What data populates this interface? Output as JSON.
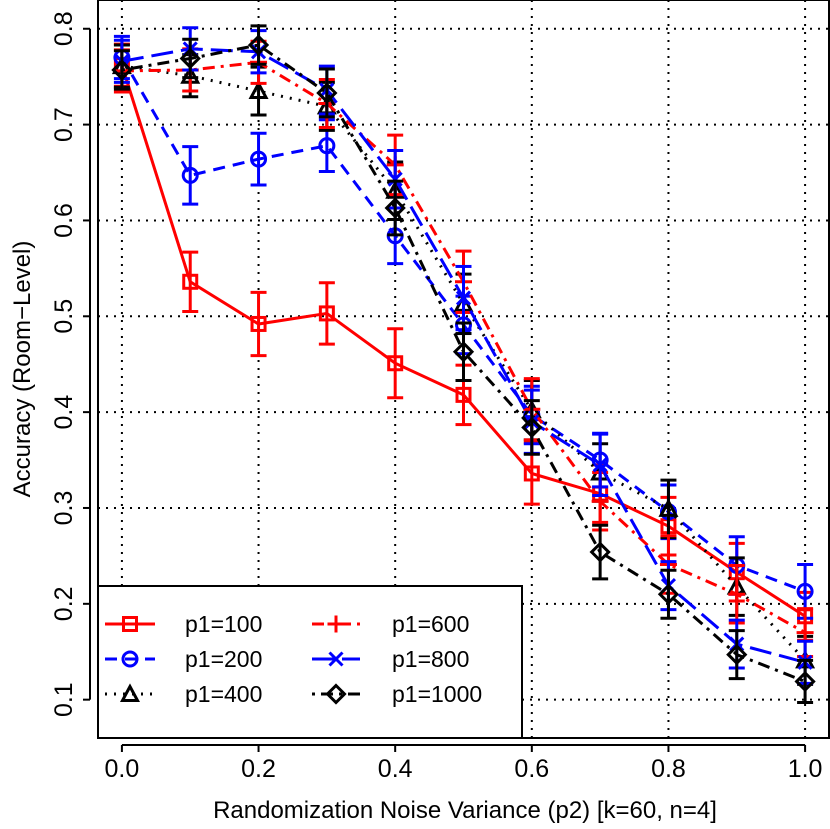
{
  "chart_data": {
    "type": "line",
    "title": "",
    "xlabel": "Randomization Noise Variance (p2) [k=60, n=4]",
    "ylabel": "Accuracy (Room−Level)",
    "xlim": [
      -0.035,
      1.035
    ],
    "ylim": [
      0.06,
      0.83
    ],
    "grid": true,
    "legend_position": "bottom-left",
    "x": [
      0.0,
      0.1,
      0.2,
      0.3,
      0.4,
      0.5,
      0.6,
      0.7,
      0.8,
      0.9,
      1.0
    ],
    "x_ticks": [
      "0.0",
      "0.2",
      "0.4",
      "0.6",
      "0.8",
      "1.0"
    ],
    "x_tick_values": [
      0.0,
      0.2,
      0.4,
      0.6,
      0.8,
      1.0
    ],
    "y_ticks": [
      "0.1",
      "0.2",
      "0.3",
      "0.4",
      "0.5",
      "0.6",
      "0.7",
      "0.8"
    ],
    "y_tick_values": [
      0.1,
      0.2,
      0.3,
      0.4,
      0.5,
      0.6,
      0.7,
      0.8
    ],
    "series": [
      {
        "name": "p1=100",
        "color": "#ff0000",
        "marker": "square",
        "dash": "solid",
        "values": [
          0.762,
          0.536,
          0.492,
          0.503,
          0.451,
          0.418,
          0.336,
          0.315,
          0.281,
          0.233,
          0.187
        ],
        "errors": [
          0.022,
          0.031,
          0.033,
          0.032,
          0.036,
          0.031,
          0.032,
          0.03,
          0.03,
          0.03,
          0.025
        ]
      },
      {
        "name": "p1=200",
        "color": "#0000ff",
        "marker": "circle",
        "dash": "dashed",
        "values": [
          0.77,
          0.647,
          0.664,
          0.678,
          0.584,
          0.491,
          0.397,
          0.35,
          0.296,
          0.24,
          0.213
        ],
        "errors": [
          0.022,
          0.03,
          0.027,
          0.027,
          0.029,
          0.03,
          0.03,
          0.028,
          0.028,
          0.03,
          0.028
        ]
      },
      {
        "name": "p1=400",
        "color": "#000000",
        "marker": "triangle",
        "dash": "dotted",
        "values": [
          0.761,
          0.751,
          0.735,
          0.719,
          0.631,
          0.513,
          0.402,
          0.337,
          0.299,
          0.218,
          0.141
        ],
        "errors": [
          0.022,
          0.022,
          0.025,
          0.025,
          0.03,
          0.031,
          0.031,
          0.03,
          0.03,
          0.03,
          0.025
        ]
      },
      {
        "name": "p1=600",
        "color": "#ff0000",
        "marker": "plus",
        "dash": "dashdot",
        "values": [
          0.756,
          0.757,
          0.765,
          0.722,
          0.658,
          0.536,
          0.403,
          0.307,
          0.241,
          0.21,
          0.17
        ],
        "errors": [
          0.022,
          0.022,
          0.022,
          0.025,
          0.031,
          0.032,
          0.032,
          0.03,
          0.03,
          0.03,
          0.025
        ]
      },
      {
        "name": "p1=800",
        "color": "#0000ff",
        "marker": "cross",
        "dash": "longdash",
        "values": [
          0.766,
          0.779,
          0.776,
          0.736,
          0.643,
          0.519,
          0.39,
          0.345,
          0.219,
          0.158,
          0.139
        ],
        "errors": [
          0.022,
          0.022,
          0.022,
          0.025,
          0.03,
          0.033,
          0.033,
          0.032,
          0.025,
          0.025,
          0.022
        ]
      },
      {
        "name": "p1=1000",
        "color": "#000000",
        "marker": "diamond",
        "dash": "dotdash",
        "values": [
          0.757,
          0.769,
          0.783,
          0.733,
          0.613,
          0.463,
          0.384,
          0.254,
          0.21,
          0.147,
          0.119
        ],
        "errors": [
          0.02,
          0.02,
          0.02,
          0.025,
          0.028,
          0.03,
          0.028,
          0.028,
          0.025,
          0.025,
          0.022
        ]
      }
    ]
  }
}
